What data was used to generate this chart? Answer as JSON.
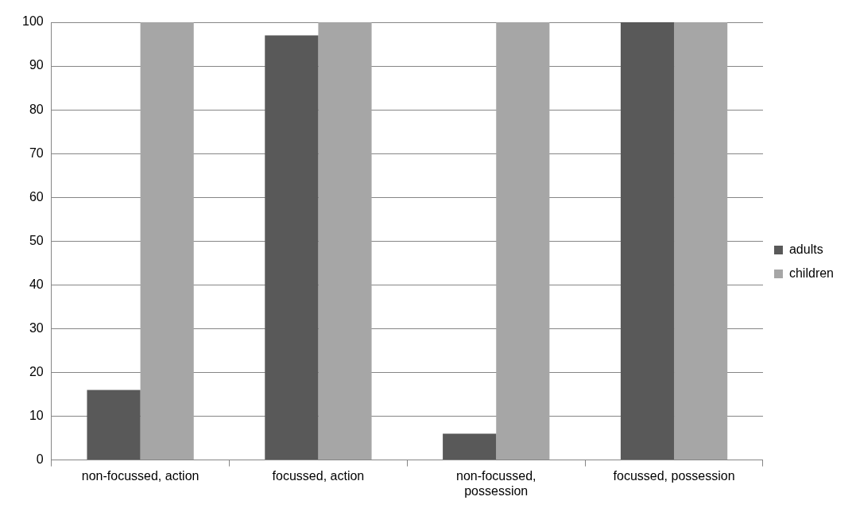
{
  "chart_data": {
    "type": "bar",
    "categories": [
      "non-focussed, action",
      "focussed, action",
      "non-focussed, possession",
      "focussed, possession"
    ],
    "series": [
      {
        "name": "adults",
        "color": "#595959",
        "values": [
          16,
          97,
          6,
          100
        ]
      },
      {
        "name": "children",
        "color": "#a6a6a6",
        "values": [
          100,
          100,
          100,
          100
        ]
      }
    ],
    "ylim": [
      0,
      100
    ],
    "yticks": [
      0,
      10,
      20,
      30,
      40,
      50,
      60,
      70,
      80,
      90,
      100
    ],
    "grid": "y",
    "legend": "right"
  }
}
